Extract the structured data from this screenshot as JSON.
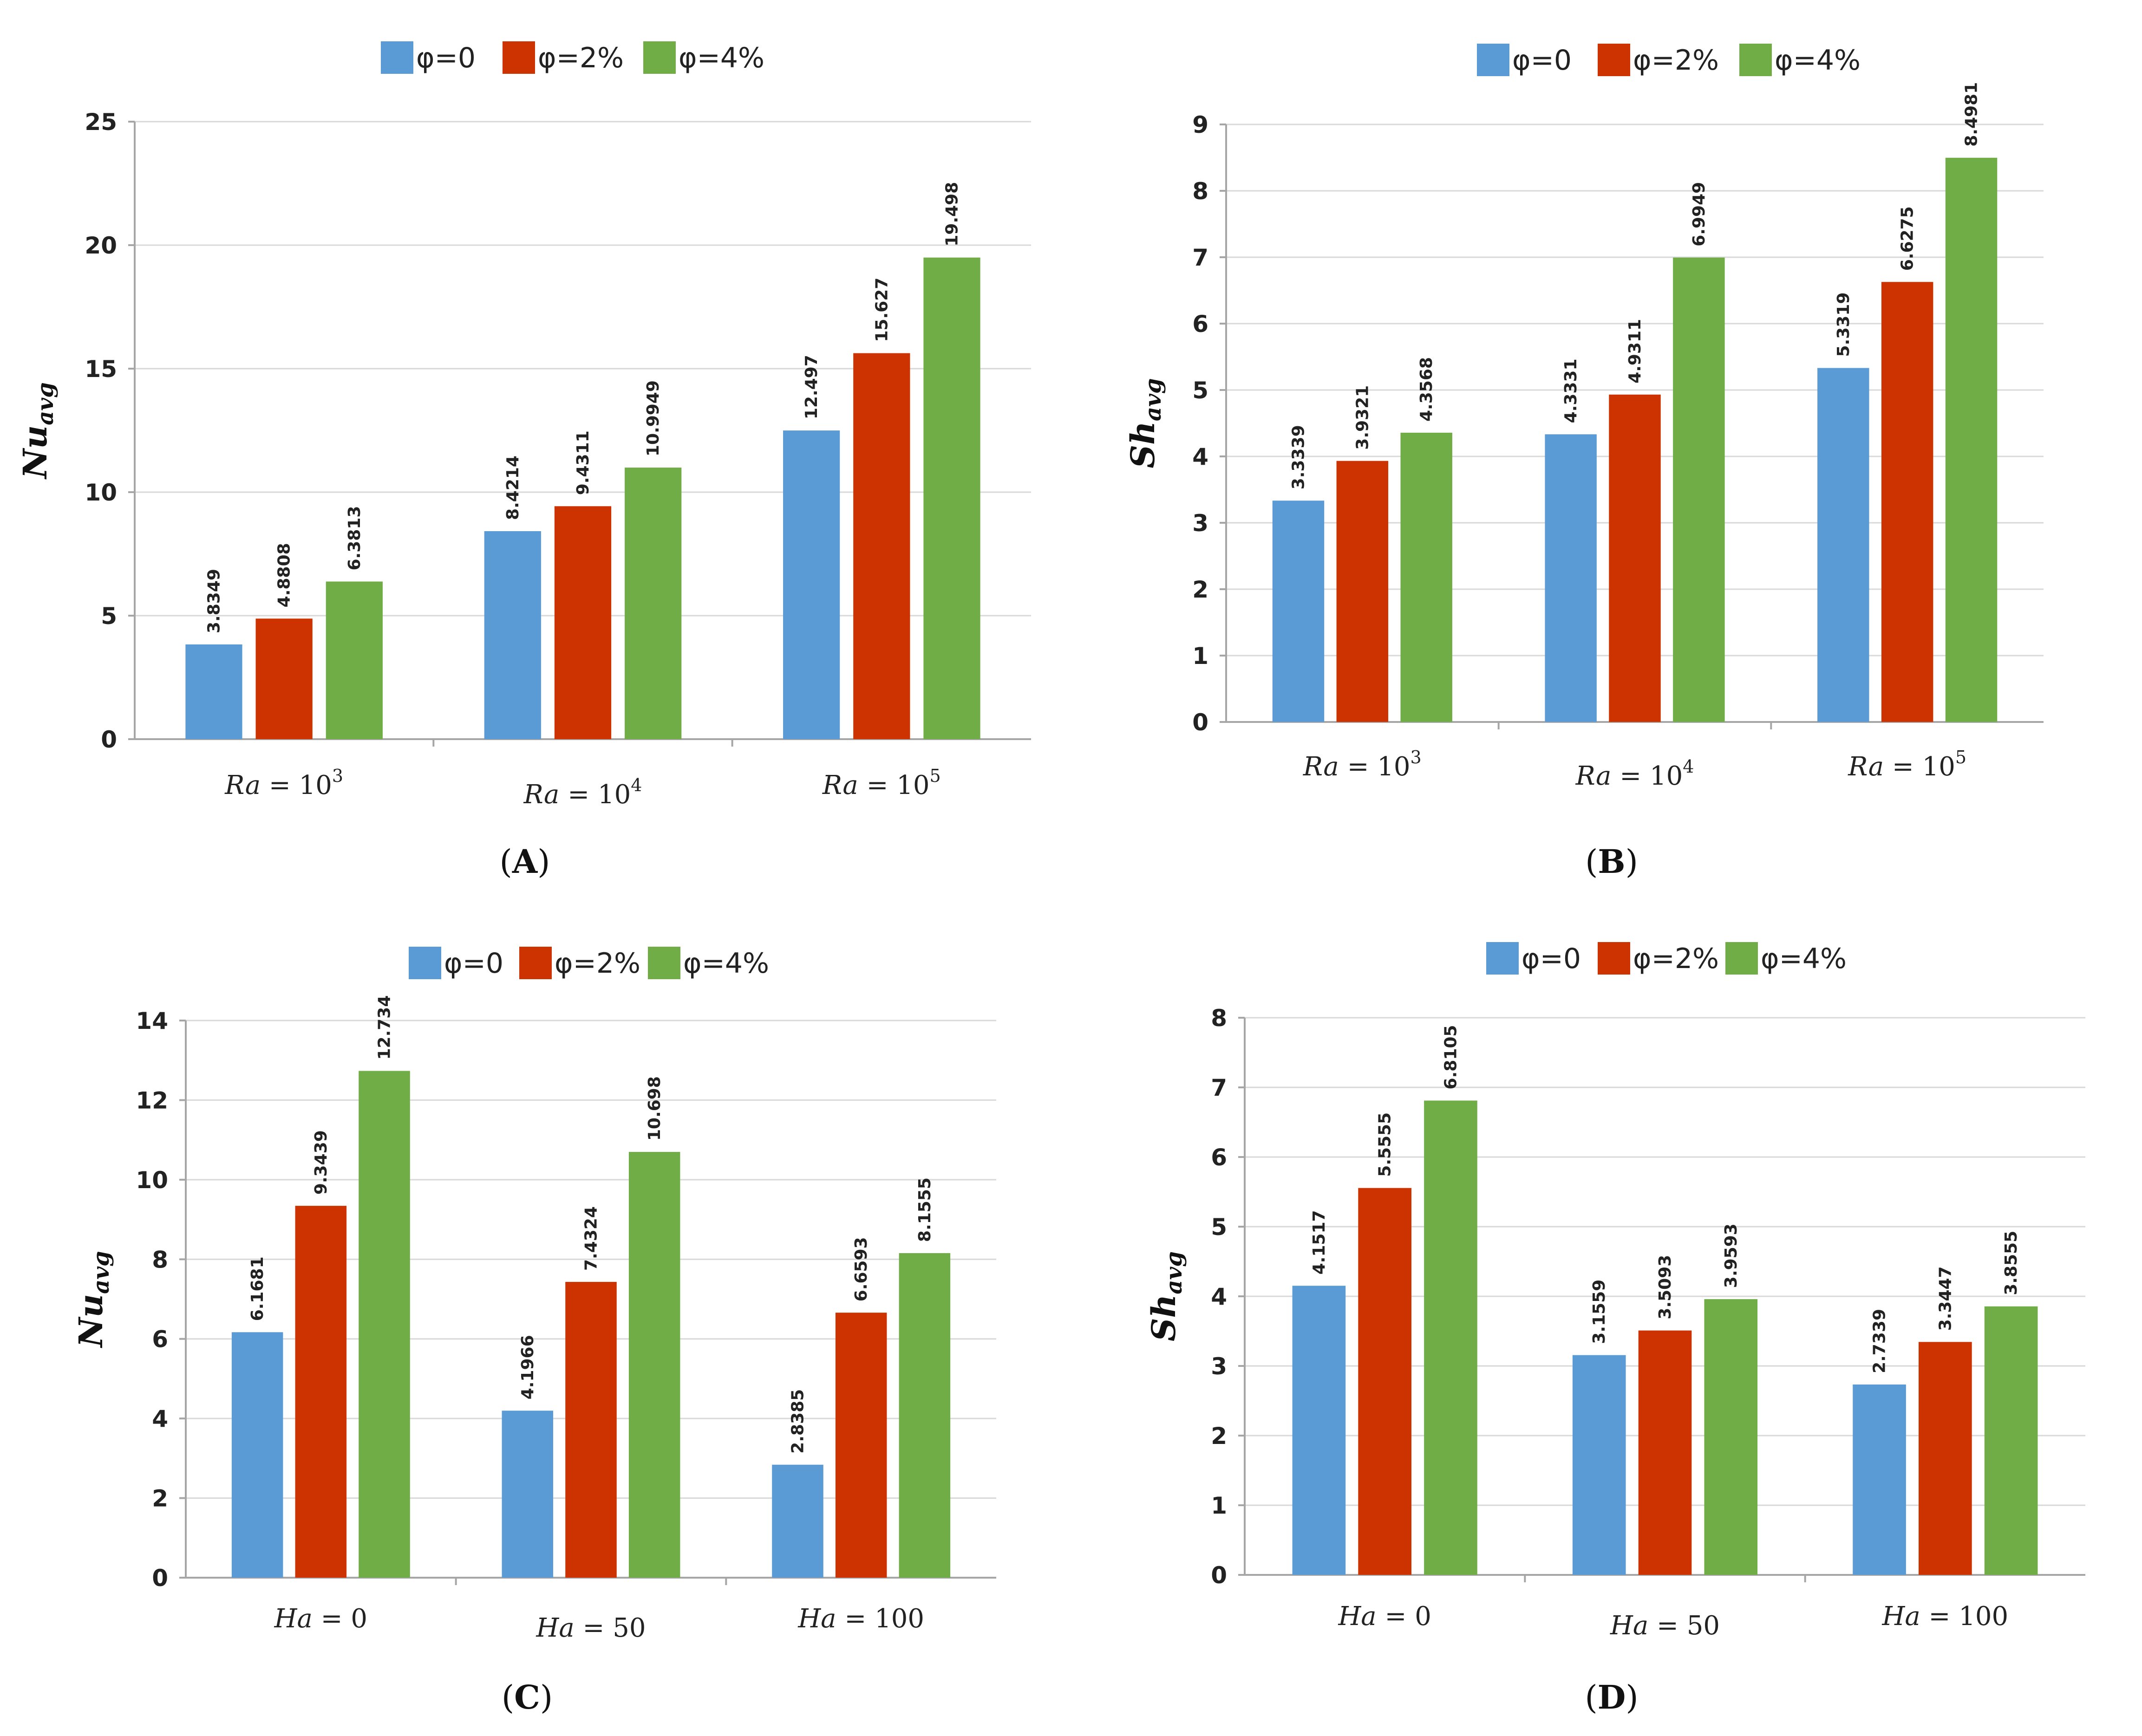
{
  "colors": {
    "phi0": "#5b9bd5",
    "phi2": "#cc3300",
    "phi4": "#70ad47"
  },
  "legend_labels": [
    "φ=0",
    "φ=2%",
    "φ=4%"
  ],
  "chart_data": [
    {
      "id": "A",
      "panel_label": "(A)",
      "panel_letter": "A",
      "type": "bar",
      "ylabel": "Nu_avg",
      "ylabel_main": "Nu",
      "ylabel_sub": "avg",
      "ylim": [
        0,
        25
      ],
      "yticks": [
        0,
        5,
        10,
        15,
        20,
        25
      ],
      "categories": [
        "Ra = 10^3",
        "Ra = 10^4",
        "Ra = 10^5"
      ],
      "category_parts": [
        {
          "var": "Ra",
          "eq": " = 10",
          "sup": "3"
        },
        {
          "var": "Ra",
          "eq": " = 10",
          "sup": "4"
        },
        {
          "var": "Ra",
          "eq": " = 10",
          "sup": "5"
        }
      ],
      "series": [
        {
          "name": "φ=0",
          "values": [
            3.8349,
            8.4214,
            12.497
          ],
          "labels": [
            "3.8349",
            "8.4214",
            "12.497"
          ]
        },
        {
          "name": "φ=2%",
          "values": [
            4.8808,
            9.4311,
            15.627
          ],
          "labels": [
            "4.8808",
            "9.4311",
            "15.627"
          ]
        },
        {
          "name": "φ=4%",
          "values": [
            6.3813,
            10.9949,
            19.498
          ],
          "labels": [
            "6.3813",
            "10.9949",
            "19.498"
          ]
        }
      ]
    },
    {
      "id": "B",
      "panel_label": "(B)",
      "panel_letter": "B",
      "type": "bar",
      "ylabel": "Sh_avg",
      "ylabel_main": "Sh",
      "ylabel_sub": "avg",
      "ylim": [
        0,
        9
      ],
      "yticks": [
        0,
        1,
        2,
        3,
        4,
        5,
        6,
        7,
        8,
        9
      ],
      "categories": [
        "Ra = 10^3",
        "Ra = 10^4",
        "Ra = 10^5"
      ],
      "category_parts": [
        {
          "var": "Ra",
          "eq": " = 10",
          "sup": "3"
        },
        {
          "var": "Ra",
          "eq": " = 10",
          "sup": "4"
        },
        {
          "var": "Ra",
          "eq": " = 10",
          "sup": "5"
        }
      ],
      "series": [
        {
          "name": "φ=0",
          "values": [
            3.3339,
            4.3331,
            5.3319
          ],
          "labels": [
            "3.3339",
            "4.3331",
            "5.3319"
          ]
        },
        {
          "name": "φ=2%",
          "values": [
            3.9321,
            4.9311,
            6.6275
          ],
          "labels": [
            "3.9321",
            "4.9311",
            "6.6275"
          ]
        },
        {
          "name": "φ=4%",
          "values": [
            4.3568,
            6.9949,
            8.4981
          ],
          "labels": [
            "4.3568",
            "6.9949",
            "8.4981"
          ]
        }
      ]
    },
    {
      "id": "C",
      "panel_label": "(C)",
      "panel_letter": "C",
      "type": "bar",
      "ylabel": "Nu_avg",
      "ylabel_main": "Nu",
      "ylabel_sub": "avg",
      "ylim": [
        0,
        14
      ],
      "yticks": [
        0,
        2,
        4,
        6,
        8,
        10,
        12,
        14
      ],
      "categories": [
        "Ha = 0",
        "Ha = 50",
        "Ha = 100"
      ],
      "category_parts": [
        {
          "var": "Ha",
          "eq": " = 0",
          "sup": ""
        },
        {
          "var": "Ha",
          "eq": " = 50",
          "sup": ""
        },
        {
          "var": "Ha",
          "eq": " = 100",
          "sup": ""
        }
      ],
      "series": [
        {
          "name": "φ=0",
          "values": [
            6.1681,
            4.1966,
            2.8385
          ],
          "labels": [
            "6.1681",
            "4.1966",
            "2.8385"
          ]
        },
        {
          "name": "φ=2%",
          "values": [
            9.3439,
            7.4324,
            6.6593
          ],
          "labels": [
            "9.3439",
            "7.4324",
            "6.6593"
          ]
        },
        {
          "name": "φ=4%",
          "values": [
            12.734,
            10.698,
            8.1555
          ],
          "labels": [
            "12.734",
            "10.698",
            "8.1555"
          ]
        }
      ]
    },
    {
      "id": "D",
      "panel_label": "(D)",
      "panel_letter": "D",
      "type": "bar",
      "ylabel": "Sh_avg",
      "ylabel_main": "Sh",
      "ylabel_sub": "avg",
      "ylim": [
        0,
        8
      ],
      "yticks": [
        0,
        1,
        2,
        3,
        4,
        5,
        6,
        7,
        8
      ],
      "categories": [
        "Ha = 0",
        "Ha = 50",
        "Ha = 100"
      ],
      "category_parts": [
        {
          "var": "Ha",
          "eq": " = 0",
          "sup": ""
        },
        {
          "var": "Ha",
          "eq": " = 50",
          "sup": ""
        },
        {
          "var": "Ha",
          "eq": " = 100",
          "sup": ""
        }
      ],
      "series": [
        {
          "name": "φ=0",
          "values": [
            4.1517,
            3.1559,
            2.7339
          ],
          "labels": [
            "4.1517",
            "3.1559",
            "2.7339"
          ]
        },
        {
          "name": "φ=2%",
          "values": [
            5.5555,
            3.5093,
            3.3447
          ],
          "labels": [
            "5.5555",
            "3.5093",
            "3.3447"
          ]
        },
        {
          "name": "φ=4%",
          "values": [
            6.8105,
            3.9593,
            3.8555
          ],
          "labels": [
            "6.8105",
            "3.9593",
            "3.8555"
          ]
        }
      ]
    }
  ]
}
